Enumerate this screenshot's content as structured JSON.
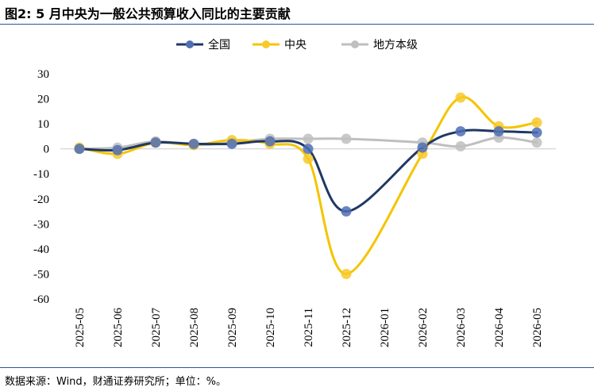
{
  "title": "图2: 5 月中央为一般公共预算收入同比的主要贡献",
  "source": "数据来源：Wind，财通证券研究所；单位：%。",
  "chart_data": {
    "type": "line",
    "smooth": true,
    "categories": [
      "2025-05",
      "2025-06",
      "2025-07",
      "2025-08",
      "2025-09",
      "2025-10",
      "2025-11",
      "2025-12",
      "2026-01",
      "2026-02",
      "2026-03",
      "2026-04",
      "2026-05"
    ],
    "ylim": [
      -60,
      30
    ],
    "yticks": [
      30,
      20,
      10,
      0,
      -10,
      -20,
      -30,
      -40,
      -50,
      -60
    ],
    "legend_position": "top",
    "grid": false,
    "series": [
      {
        "name": "全国",
        "color": "#1f3864",
        "marker_color": "#4f6fb5",
        "values": [
          0,
          -0.5,
          2.5,
          2,
          2,
          3,
          0,
          -25,
          null,
          0.5,
          7,
          7,
          6.5
        ]
      },
      {
        "name": "中央",
        "color": "#f5c400",
        "marker_color": "#f7c92a",
        "values": [
          0.5,
          -2,
          2.5,
          1.5,
          3.5,
          2,
          -4,
          -50,
          null,
          -2,
          20.5,
          9,
          10.5
        ]
      },
      {
        "name": "地方本级",
        "color": "#bfbfbf",
        "marker_color": "#bfbfbf",
        "values": [
          0,
          0.5,
          3,
          1.5,
          2.5,
          4,
          4,
          4,
          null,
          2.5,
          1,
          4.5,
          2.5
        ]
      }
    ]
  }
}
